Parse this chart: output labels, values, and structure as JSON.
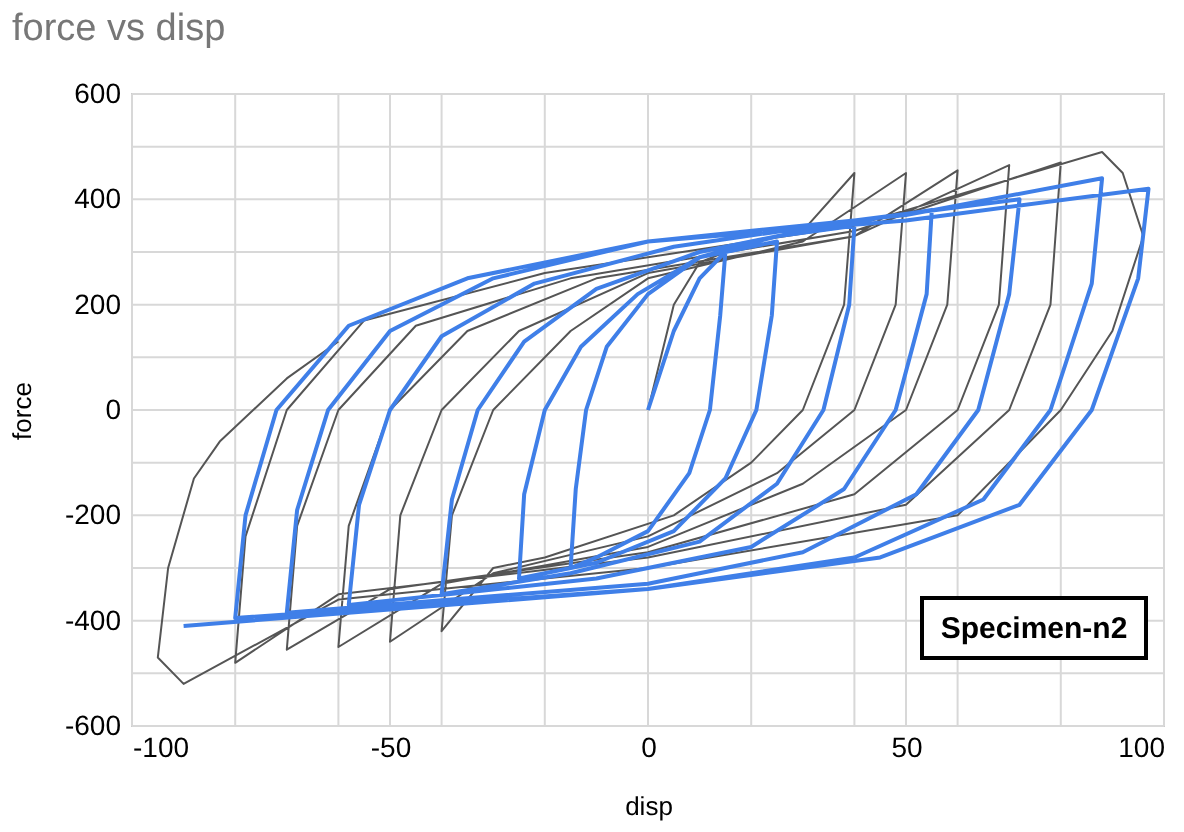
{
  "chart_data": {
    "type": "line",
    "title": "force vs disp",
    "xlabel": "disp",
    "ylabel": "force",
    "xlim": [
      -100,
      100
    ],
    "ylim": [
      -600,
      600
    ],
    "xticks": [
      -100,
      {
        "value": -80,
        "label": null
      },
      {
        "value": -60,
        "label": null
      },
      -50,
      {
        "value": -40,
        "label": null
      },
      {
        "value": -20,
        "label": null
      },
      0,
      {
        "value": 20,
        "label": null
      },
      {
        "value": 40,
        "label": null
      },
      50,
      {
        "value": 60,
        "label": null
      },
      {
        "value": 80,
        "label": null
      },
      100
    ],
    "yticks": [
      -600,
      {
        "value": -500,
        "label": null
      },
      -400,
      {
        "value": -300,
        "label": null
      },
      -200,
      {
        "value": -100,
        "label": null
      },
      0,
      {
        "value": 100,
        "label": null
      },
      200,
      {
        "value": 300,
        "label": null
      },
      400,
      {
        "value": 500,
        "label": null
      },
      600
    ],
    "grid": true,
    "annotations": [
      "Specimen-n2"
    ],
    "series": [
      {
        "color": "#555555",
        "x": [
          0,
          5,
          10,
          20,
          30,
          40,
          38,
          30,
          20,
          5,
          -20,
          -30,
          -40,
          -38,
          -30,
          -15,
          0,
          30,
          50,
          48,
          40,
          25,
          0,
          -30,
          -50,
          -48,
          -40,
          -25,
          0,
          40,
          60,
          58,
          50,
          30,
          0,
          -40,
          -60,
          -58,
          -50,
          -35,
          -10,
          40,
          70,
          68,
          60,
          40,
          0,
          -50,
          -70,
          -68,
          -60,
          -45,
          -15,
          40,
          80,
          78,
          70,
          50,
          0,
          -60,
          -80,
          -78,
          -70,
          -55,
          -20,
          40,
          88,
          92,
          96,
          90,
          80,
          60,
          0,
          -60,
          -90,
          -95,
          -93,
          -88,
          -83,
          -70,
          -60
        ],
        "values": [
          0,
          200,
          280,
          320,
          340,
          450,
          200,
          0,
          -100,
          -200,
          -280,
          -300,
          -420,
          -200,
          0,
          150,
          250,
          320,
          450,
          200,
          0,
          -120,
          -240,
          -310,
          -440,
          -200,
          0,
          150,
          260,
          330,
          455,
          200,
          0,
          -140,
          -260,
          -330,
          -450,
          -220,
          0,
          150,
          250,
          330,
          465,
          200,
          0,
          -160,
          -270,
          -340,
          -455,
          -220,
          0,
          160,
          250,
          340,
          470,
          200,
          0,
          -180,
          -280,
          -350,
          -480,
          -240,
          0,
          170,
          260,
          350,
          490,
          450,
          330,
          150,
          0,
          -200,
          -300,
          -360,
          -520,
          -470,
          -300,
          -130,
          -60,
          60,
          130
        ]
      },
      {
        "color": "#3f7fe8",
        "x": [
          0,
          5,
          10,
          15,
          14,
          12,
          8,
          0,
          -10,
          -15,
          -14,
          -12,
          -8,
          0,
          10,
          20,
          25,
          24,
          21,
          15,
          5,
          -10,
          -25,
          -24,
          -20,
          -13,
          -2,
          10,
          25,
          40,
          39,
          34,
          25,
          10,
          -15,
          -40,
          -38,
          -33,
          -24,
          -10,
          10,
          35,
          55,
          54,
          48,
          38,
          20,
          -10,
          -58,
          -56,
          -50,
          -40,
          -22,
          5,
          40,
          72,
          70,
          64,
          52,
          30,
          0,
          -70,
          -68,
          -62,
          -50,
          -30,
          0,
          50,
          88,
          86,
          78,
          65,
          40,
          0,
          -80,
          -78,
          -72,
          -58,
          -35,
          0,
          50,
          97,
          95,
          86,
          72,
          45,
          0,
          -90
        ],
        "values": [
          0,
          150,
          250,
          300,
          180,
          0,
          -120,
          -230,
          -280,
          -300,
          -150,
          0,
          120,
          220,
          290,
          310,
          320,
          180,
          0,
          -130,
          -230,
          -290,
          -320,
          -160,
          0,
          120,
          220,
          290,
          330,
          350,
          200,
          0,
          -140,
          -250,
          -310,
          -350,
          -170,
          0,
          130,
          230,
          300,
          350,
          380,
          220,
          0,
          -150,
          -260,
          -320,
          -370,
          -180,
          0,
          140,
          240,
          310,
          360,
          400,
          220,
          0,
          -160,
          -270,
          -330,
          -385,
          -190,
          0,
          150,
          250,
          320,
          370,
          440,
          240,
          0,
          -170,
          -280,
          -340,
          -395,
          -200,
          0,
          160,
          250,
          320,
          360,
          420,
          250,
          0,
          -180,
          -280,
          -340,
          -410
        ]
      }
    ]
  }
}
